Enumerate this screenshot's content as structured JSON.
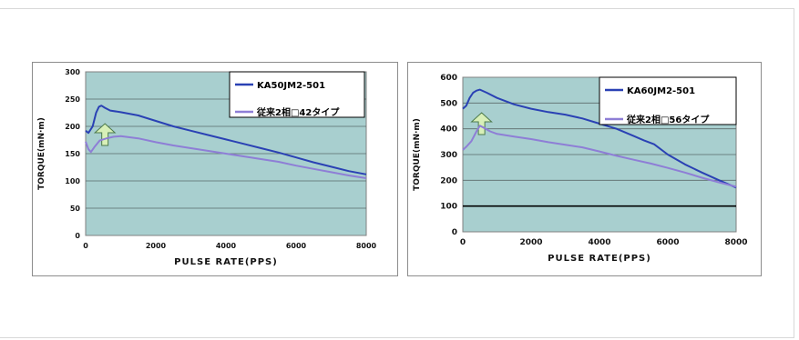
{
  "chart_data": [
    {
      "type": "line",
      "xlabel": "PULSE RATE(PPS)",
      "ylabel": "TORQUE(mN·m)",
      "xlim": [
        0,
        8000
      ],
      "ylim": [
        0,
        300
      ],
      "xticks": [
        0,
        2000,
        4000,
        6000,
        8000
      ],
      "yticks": [
        0,
        50,
        100,
        150,
        200,
        250,
        300
      ],
      "grid": true,
      "legend_position": "top-right",
      "plot_bg": "#a8cfcf",
      "highlight_arrow": true,
      "series": [
        {
          "name": "KA50JM2-501",
          "color": "#2a41b4",
          "x": [
            0,
            80,
            200,
            300,
            380,
            450,
            550,
            700,
            1000,
            1500,
            2000,
            2500,
            3000,
            3500,
            4000,
            4500,
            5000,
            5500,
            6000,
            6500,
            7000,
            7500,
            8000
          ],
          "y": [
            192,
            188,
            200,
            225,
            236,
            238,
            234,
            229,
            226,
            220,
            210,
            200,
            192,
            184,
            176,
            168,
            160,
            152,
            143,
            134,
            126,
            118,
            112
          ]
        },
        {
          "name": "従来2相□42タイプ",
          "color": "#8e7ed6",
          "x": [
            0,
            80,
            150,
            250,
            400,
            600,
            800,
            1000,
            1500,
            2000,
            2500,
            3000,
            3500,
            4000,
            4500,
            5000,
            5500,
            6000,
            6500,
            7000,
            7500,
            8000
          ],
          "y": [
            172,
            158,
            153,
            162,
            174,
            178,
            181,
            182,
            178,
            171,
            165,
            160,
            155,
            150,
            145,
            140,
            135,
            128,
            122,
            116,
            110,
            105
          ]
        }
      ]
    },
    {
      "type": "line",
      "xlabel": "PULSE RATE(PPS)",
      "ylabel": "TORQUE(mN·m)",
      "xlim": [
        0,
        8000
      ],
      "ylim": [
        0,
        600
      ],
      "xticks": [
        0,
        2000,
        4000,
        6000,
        8000
      ],
      "yticks": [
        0,
        100,
        200,
        300,
        400,
        500,
        600
      ],
      "grid": true,
      "emphasized_gridline": 100,
      "legend_position": "top-right",
      "plot_bg": "#a8cfcf",
      "highlight_arrow": true,
      "series": [
        {
          "name": "KA60JM2-501",
          "color": "#2a41b4",
          "x": [
            0,
            100,
            200,
            300,
            400,
            500,
            700,
            1000,
            1500,
            2000,
            2500,
            3000,
            3500,
            4000,
            4500,
            5000,
            5300,
            5600,
            6000,
            6500,
            7000,
            7500,
            8000
          ],
          "y": [
            478,
            490,
            520,
            540,
            548,
            552,
            540,
            520,
            495,
            478,
            465,
            455,
            440,
            420,
            400,
            372,
            355,
            340,
            300,
            262,
            230,
            200,
            172
          ]
        },
        {
          "name": "従来2相□56タイプ",
          "color": "#8e7ed6",
          "x": [
            0,
            100,
            250,
            400,
            500,
            600,
            800,
            1000,
            1500,
            2000,
            2500,
            3000,
            3500,
            4000,
            4500,
            5000,
            5500,
            6000,
            6500,
            7000,
            7500,
            8000
          ],
          "y": [
            318,
            330,
            352,
            390,
            412,
            405,
            390,
            380,
            370,
            360,
            348,
            338,
            328,
            312,
            295,
            280,
            265,
            248,
            230,
            210,
            192,
            175
          ]
        }
      ]
    }
  ]
}
